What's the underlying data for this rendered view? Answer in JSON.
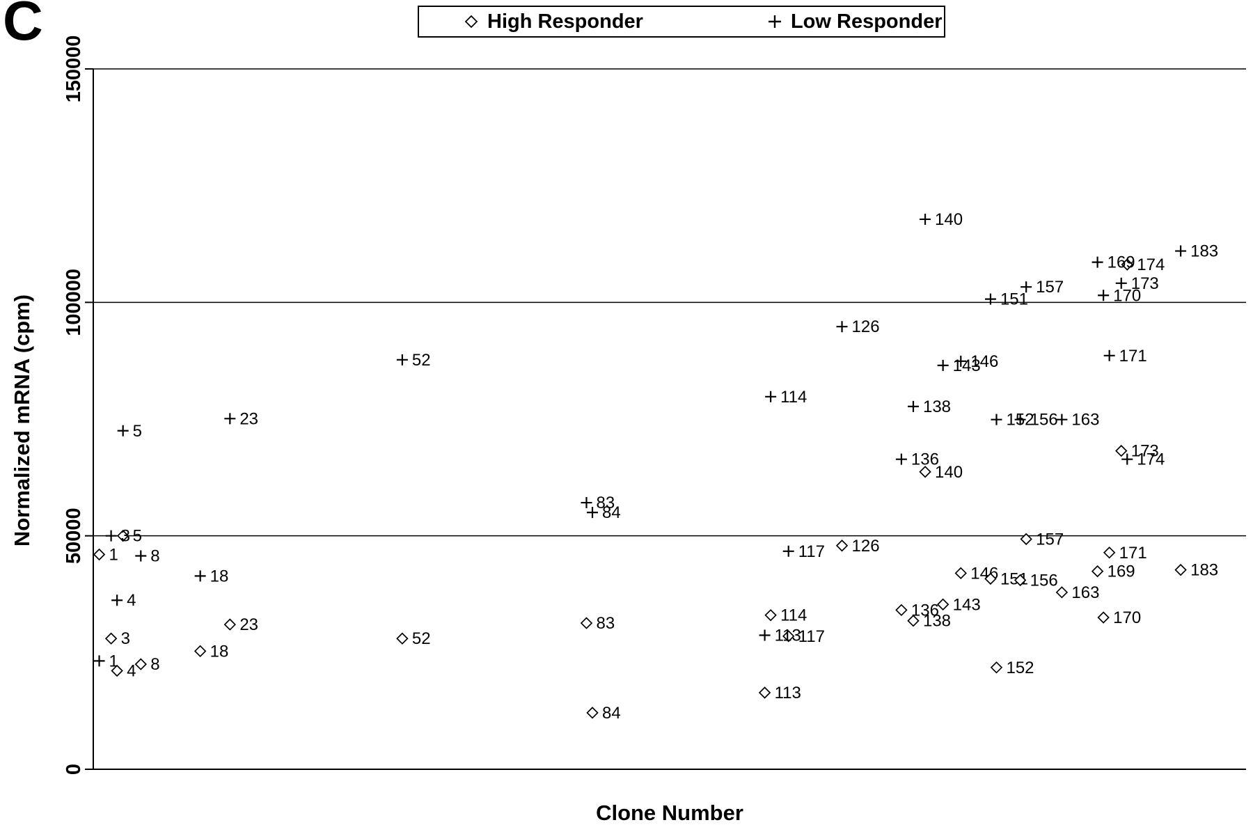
{
  "panel_label": "C",
  "colors": {
    "foreground": "#000000",
    "background": "#ffffff"
  },
  "legend": {
    "items": [
      {
        "marker": "diamond",
        "glyph": "◇",
        "label": "High Responder"
      },
      {
        "marker": "plus",
        "glyph": "+",
        "label": "Low Responder"
      }
    ]
  },
  "chart_data": {
    "type": "scatter",
    "title": "",
    "xlabel": "Clone Number",
    "ylabel": "Normalized mRNA (cpm)",
    "xlim": [
      0,
      194
    ],
    "ylim": [
      0,
      150000
    ],
    "yticks": [
      0,
      50000,
      100000,
      150000
    ],
    "ytick_labels": [
      "0",
      "50000",
      "100000",
      "150000"
    ],
    "gridlines_y": [
      50000,
      100000,
      150000
    ],
    "legend_position": "top-center",
    "point_labels": "clone number shown beside each marker",
    "series": [
      {
        "name": "High Responder",
        "marker": "diamond",
        "points": [
          {
            "clone": 1,
            "value": 46000
          },
          {
            "clone": 3,
            "value": 28000
          },
          {
            "clone": 4,
            "value": 21100
          },
          {
            "clone": 5,
            "value": 50000
          },
          {
            "clone": 8,
            "value": 22500
          },
          {
            "clone": 18,
            "value": 25300
          },
          {
            "clone": 23,
            "value": 31000
          },
          {
            "clone": 52,
            "value": 28000
          },
          {
            "clone": 83,
            "value": 31300
          },
          {
            "clone": 84,
            "value": 12100
          },
          {
            "clone": 113,
            "value": 16400
          },
          {
            "clone": 114,
            "value": 33000
          },
          {
            "clone": 117,
            "value": 28500
          },
          {
            "clone": 126,
            "value": 47900
          },
          {
            "clone": 136,
            "value": 34100
          },
          {
            "clone": 138,
            "value": 31800
          },
          {
            "clone": 140,
            "value": 63700
          },
          {
            "clone": 143,
            "value": 35300
          },
          {
            "clone": 146,
            "value": 42000
          },
          {
            "clone": 151,
            "value": 40800
          },
          {
            "clone": 152,
            "value": 21800
          },
          {
            "clone": 156,
            "value": 40500
          },
          {
            "clone": 157,
            "value": 49300
          },
          {
            "clone": 163,
            "value": 37900
          },
          {
            "clone": 169,
            "value": 42400
          },
          {
            "clone": 170,
            "value": 32500
          },
          {
            "clone": 171,
            "value": 46400
          },
          {
            "clone": 173,
            "value": 68200
          },
          {
            "clone": 174,
            "value": 108100
          },
          {
            "clone": 183,
            "value": 42700
          }
        ]
      },
      {
        "name": "Low Responder",
        "marker": "plus",
        "points": [
          {
            "clone": 1,
            "value": 23200
          },
          {
            "clone": 3,
            "value": 50000
          },
          {
            "clone": 4,
            "value": 36200
          },
          {
            "clone": 5,
            "value": 72500
          },
          {
            "clone": 8,
            "value": 45700
          },
          {
            "clone": 18,
            "value": 41400
          },
          {
            "clone": 23,
            "value": 75100
          },
          {
            "clone": 52,
            "value": 87700
          },
          {
            "clone": 83,
            "value": 57100
          },
          {
            "clone": 84,
            "value": 55000
          },
          {
            "clone": 113,
            "value": 28700
          },
          {
            "clone": 114,
            "value": 79800
          },
          {
            "clone": 117,
            "value": 46700
          },
          {
            "clone": 126,
            "value": 94800
          },
          {
            "clone": 136,
            "value": 66400
          },
          {
            "clone": 138,
            "value": 77700
          },
          {
            "clone": 140,
            "value": 117800
          },
          {
            "clone": 143,
            "value": 86500
          },
          {
            "clone": 146,
            "value": 87400
          },
          {
            "clone": 151,
            "value": 100700
          },
          {
            "clone": 152,
            "value": 74900
          },
          {
            "clone": 156,
            "value": 74900
          },
          {
            "clone": 157,
            "value": 103300
          },
          {
            "clone": 163,
            "value": 74900
          },
          {
            "clone": 169,
            "value": 108600
          },
          {
            "clone": 170,
            "value": 101500
          },
          {
            "clone": 171,
            "value": 88600
          },
          {
            "clone": 173,
            "value": 104100
          },
          {
            "clone": 174,
            "value": 66400
          },
          {
            "clone": 183,
            "value": 111000
          }
        ]
      }
    ]
  }
}
